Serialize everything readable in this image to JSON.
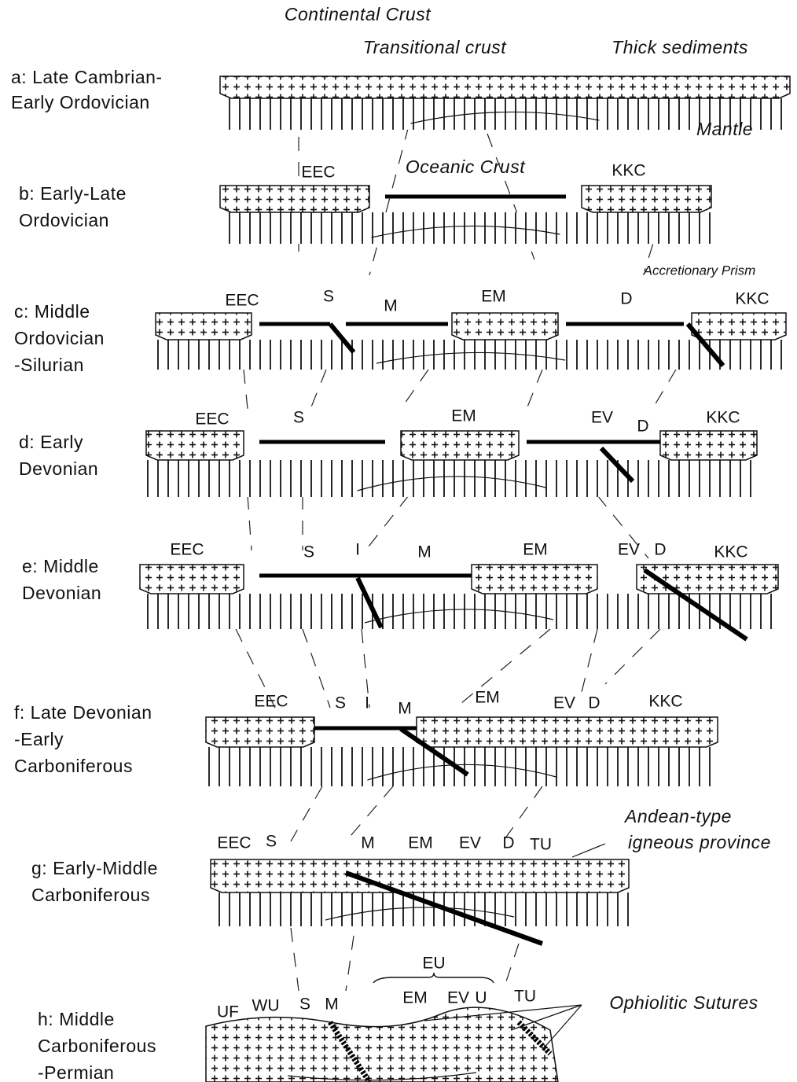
{
  "annotations": {
    "continental_crust": "Continental Crust",
    "transitional_crust": "Transitional crust",
    "thick_sediments": "Thick sediments",
    "mantle": "Mantle",
    "oceanic_crust": "Oceanic Crust",
    "accretionary_prism": "Accretionary Prism",
    "andean_1": "Andean-type",
    "andean_2": "igneous province",
    "eu": "EU",
    "ophiolitic_sutures": "Ophiolitic Sutures"
  },
  "panels": [
    {
      "label": [
        "a: Late Cambrian-",
        "Early Ordovician"
      ],
      "tags": []
    },
    {
      "label": [
        "b: Early-Late",
        "Ordovician"
      ],
      "tags": [
        "EEC",
        "KKC"
      ]
    },
    {
      "label": [
        "c: Middle",
        "Ordovician",
        "-Silurian"
      ],
      "tags": [
        "EEC",
        "S",
        "M",
        "EM",
        "D",
        "KKC"
      ]
    },
    {
      "label": [
        "d: Early",
        "Devonian"
      ],
      "tags": [
        "EEC",
        "S",
        "EM",
        "EV",
        "D",
        "KKC"
      ]
    },
    {
      "label": [
        "e: Middle",
        "Devonian"
      ],
      "tags": [
        "EEC",
        "S",
        "I",
        "M",
        "EM",
        "EV",
        "D",
        "KKC"
      ]
    },
    {
      "label": [
        "f: Late Devonian",
        "-Early",
        "Carboniferous"
      ],
      "tags": [
        "EEC",
        "S",
        "I",
        "M",
        "EM",
        "EV",
        "D",
        "KKC"
      ]
    },
    {
      "label": [
        "g: Early-Middle",
        "Carboniferous"
      ],
      "tags": [
        "EEC",
        "S",
        "M",
        "EM",
        "EV",
        "D",
        "TU"
      ]
    },
    {
      "label": [
        "h: Middle",
        "Carboniferous",
        "-Permian"
      ],
      "tags": [
        "UF",
        "WU",
        "S",
        "M",
        "EM",
        "EV",
        "U",
        "TU"
      ]
    }
  ]
}
